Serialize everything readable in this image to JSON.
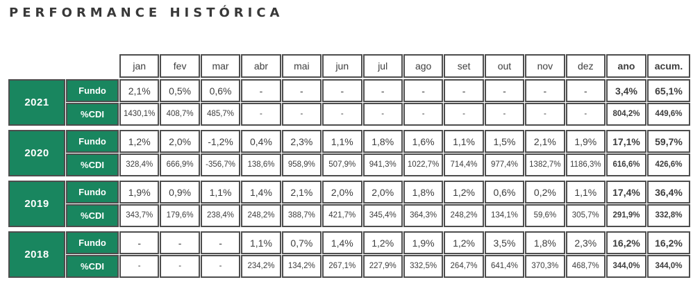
{
  "title": "PERFORMANCE HISTÓRICA",
  "colors": {
    "green": "#19865F",
    "border": "#4D4D4D",
    "text": "#3D3D3D",
    "title": "#383838"
  },
  "table": {
    "month_headers": [
      "jan",
      "fev",
      "mar",
      "abr",
      "mai",
      "jun",
      "jul",
      "ago",
      "set",
      "out",
      "nov",
      "dez",
      "ano",
      "acum."
    ],
    "row_labels": {
      "fund": "Fundo",
      "cdi": "%CDI"
    },
    "years": [
      {
        "year": "2021",
        "fundo": [
          "2,1%",
          "0,5%",
          "0,6%",
          "-",
          "-",
          "-",
          "-",
          "-",
          "-",
          "-",
          "-",
          "-",
          "3,4%",
          "65,1%"
        ],
        "cdi": [
          "1430,1%",
          "408,7%",
          "485,7%",
          "-",
          "-",
          "-",
          "-",
          "-",
          "-",
          "-",
          "-",
          "-",
          "804,2%",
          "449,6%"
        ]
      },
      {
        "year": "2020",
        "fundo": [
          "1,2%",
          "2,0%",
          "-1,2%",
          "0,4%",
          "2,3%",
          "1,1%",
          "1,8%",
          "1,6%",
          "1,1%",
          "1,5%",
          "2,1%",
          "1,9%",
          "17,1%",
          "59,7%"
        ],
        "cdi": [
          "328,4%",
          "666,9%",
          "-356,7%",
          "138,6%",
          "958,9%",
          "507,9%",
          "941,3%",
          "1022,7%",
          "714,4%",
          "977,4%",
          "1382,7%",
          "1186,3%",
          "616,6%",
          "426,6%"
        ]
      },
      {
        "year": "2019",
        "fundo": [
          "1,9%",
          "0,9%",
          "1,1%",
          "1,4%",
          "2,1%",
          "2,0%",
          "2,0%",
          "1,8%",
          "1,2%",
          "0,6%",
          "0,2%",
          "1,1%",
          "17,4%",
          "36,4%"
        ],
        "cdi": [
          "343,7%",
          "179,6%",
          "238,4%",
          "248,2%",
          "388,7%",
          "421,7%",
          "345,4%",
          "364,3%",
          "248,2%",
          "134,1%",
          "59,6%",
          "305,7%",
          "291,9%",
          "332,8%"
        ]
      },
      {
        "year": "2018",
        "fundo": [
          "-",
          "-",
          "-",
          "1,1%",
          "0,7%",
          "1,4%",
          "1,2%",
          "1,9%",
          "1,2%",
          "3,5%",
          "1,8%",
          "2,3%",
          "16,2%",
          "16,2%"
        ],
        "cdi": [
          "-",
          "-",
          "-",
          "234,2%",
          "134,2%",
          "267,1%",
          "227,9%",
          "332,5%",
          "264,7%",
          "641,4%",
          "370,3%",
          "468,7%",
          "344,0%",
          "344,0%"
        ]
      }
    ]
  }
}
